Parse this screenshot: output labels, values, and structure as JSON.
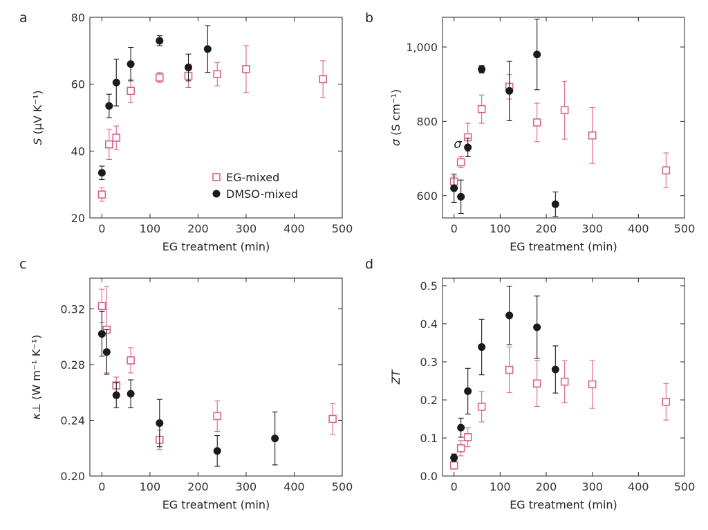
{
  "chart_data": [
    {
      "type": "scatter",
      "panel": "a",
      "xlabel": "EG treatment (min)",
      "ylabel": "S (μV K⁻¹)",
      "ylabel_main": "S",
      "ylabel_unit": "(μV K⁻¹)",
      "xlim": [
        -25,
        500
      ],
      "ylim": [
        20,
        80
      ],
      "xticks": [
        0,
        100,
        200,
        300,
        400,
        500
      ],
      "xtick_labels": [
        "0",
        "100",
        "200",
        "300",
        "400",
        "500"
      ],
      "yticks": [
        20,
        40,
        60,
        80
      ],
      "ytick_labels": [
        "20",
        "40",
        "60",
        "80"
      ],
      "legend": {
        "position": "lower-right",
        "entries": [
          "EG-mixed",
          "DMSO-mixed"
        ]
      },
      "series": [
        {
          "name": "EG-mixed",
          "marker": "open-square",
          "color": "#d9628f",
          "x": [
            0,
            15,
            30,
            60,
            120,
            180,
            240,
            300,
            460
          ],
          "y": [
            27,
            42,
            44,
            58,
            62,
            62.5,
            63,
            64.5,
            61.5
          ],
          "err": [
            2,
            4.5,
            3.5,
            3.5,
            1.5,
            3.5,
            3.5,
            7,
            5.5
          ]
        },
        {
          "name": "DMSO-mixed",
          "marker": "filled-circle",
          "color": "#1a1a1a",
          "x": [
            0,
            15,
            30,
            60,
            120,
            180,
            220
          ],
          "y": [
            33.5,
            53.5,
            60.5,
            66,
            73,
            65,
            70.5
          ],
          "err": [
            2,
            3.5,
            7,
            5,
            1.5,
            4,
            7
          ]
        }
      ]
    },
    {
      "type": "scatter",
      "panel": "b",
      "xlabel": "EG treatment (min)",
      "ylabel": "σ (S cm⁻¹)",
      "ylabel_main": "σ",
      "ylabel_unit": "(S cm⁻¹)",
      "xlim": [
        -25,
        500
      ],
      "ylim": [
        540,
        1080
      ],
      "xticks": [
        0,
        100,
        200,
        300,
        400,
        500
      ],
      "xtick_labels": [
        "0",
        "100",
        "200",
        "300",
        "400",
        "500"
      ],
      "yticks": [
        600,
        800,
        1000
      ],
      "ytick_labels": [
        "600",
        "800",
        "1,000"
      ],
      "annotation": "σ",
      "series": [
        {
          "name": "EG-mixed",
          "marker": "open-square",
          "color": "#d9628f",
          "x": [
            0,
            15,
            30,
            60,
            120,
            180,
            240,
            300,
            460
          ],
          "y": [
            638,
            690,
            757,
            833,
            893,
            797,
            830,
            762,
            668
          ],
          "err": [
            15,
            15,
            38,
            38,
            33,
            52,
            78,
            75,
            47
          ]
        },
        {
          "name": "DMSO-mixed",
          "marker": "filled-circle",
          "color": "#1a1a1a",
          "x": [
            0,
            15,
            30,
            60,
            120,
            180,
            220
          ],
          "y": [
            620,
            597,
            730,
            940,
            882,
            980,
            577
          ],
          "err": [
            38,
            45,
            25,
            10,
            80,
            95,
            33
          ]
        }
      ]
    },
    {
      "type": "scatter",
      "panel": "c",
      "xlabel": "EG treatment (min)",
      "ylabel": "κ⊥ (W m⁻¹ K⁻¹)",
      "ylabel_main": "κ⊥",
      "ylabel_unit": "(W m⁻¹ K⁻¹)",
      "xlim": [
        -25,
        500
      ],
      "ylim": [
        0.2,
        0.342
      ],
      "xticks": [
        0,
        100,
        200,
        300,
        400,
        500
      ],
      "xtick_labels": [
        "0",
        "100",
        "200",
        "300",
        "400",
        "500"
      ],
      "yticks": [
        0.2,
        0.24,
        0.28,
        0.32
      ],
      "ytick_labels": [
        "0.20",
        "0.24",
        "0.28",
        "0.32"
      ],
      "series": [
        {
          "name": "EG-mixed",
          "marker": "open-square",
          "color": "#d9628f",
          "x": [
            0,
            10,
            30,
            60,
            120,
            240,
            480
          ],
          "y": [
            0.322,
            0.305,
            0.265,
            0.283,
            0.226,
            0.243,
            0.241
          ],
          "err": [
            0.012,
            0.031,
            0.006,
            0.009,
            0.007,
            0.011,
            0.011
          ]
        },
        {
          "name": "DMSO-mixed",
          "marker": "filled-circle",
          "color": "#1a1a1a",
          "x": [
            0,
            10,
            30,
            60,
            120,
            240,
            360
          ],
          "y": [
            0.302,
            0.289,
            0.258,
            0.259,
            0.238,
            0.218,
            0.227
          ],
          "err": [
            0.016,
            0.016,
            0.009,
            0.01,
            0.017,
            0.011,
            0.019
          ]
        }
      ]
    },
    {
      "type": "scatter",
      "panel": "d",
      "xlabel": "EG treatment (min)",
      "ylabel": "ZT",
      "ylabel_main": "ZT",
      "ylabel_unit": "",
      "xlim": [
        -25,
        500
      ],
      "ylim": [
        0.0,
        0.52
      ],
      "xticks": [
        0,
        100,
        200,
        300,
        400,
        500
      ],
      "xtick_labels": [
        "0",
        "100",
        "200",
        "300",
        "400",
        "500"
      ],
      "yticks": [
        0.0,
        0.1,
        0.2,
        0.3,
        0.4,
        0.5
      ],
      "ytick_labels": [
        "0.0",
        "0.1",
        "0.2",
        "0.3",
        "0.4",
        "0.5"
      ],
      "series": [
        {
          "name": "EG-mixed",
          "marker": "open-square",
          "color": "#d9628f",
          "x": [
            0,
            15,
            30,
            60,
            120,
            180,
            240,
            300,
            460
          ],
          "y": [
            0.028,
            0.073,
            0.102,
            0.182,
            0.279,
            0.243,
            0.248,
            0.241,
            0.195
          ],
          "err": [
            0.01,
            0.02,
            0.025,
            0.04,
            0.06,
            0.06,
            0.055,
            0.063,
            0.048
          ]
        },
        {
          "name": "DMSO-mixed",
          "marker": "filled-circle",
          "color": "#1a1a1a",
          "x": [
            0,
            15,
            30,
            60,
            120,
            180,
            220
          ],
          "y": [
            0.048,
            0.127,
            0.223,
            0.339,
            0.422,
            0.391,
            0.28
          ],
          "err": [
            0.01,
            0.025,
            0.06,
            0.073,
            0.077,
            0.082,
            0.062
          ]
        }
      ]
    }
  ]
}
